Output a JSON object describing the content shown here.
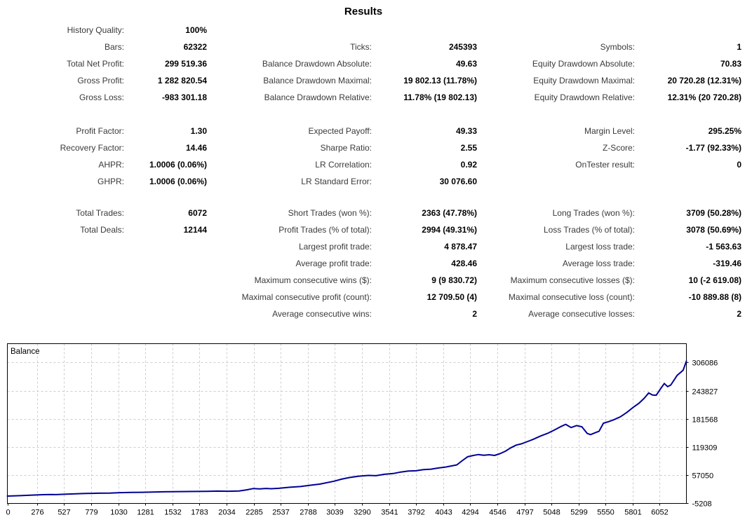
{
  "title": "Results",
  "stats": {
    "rows": [
      {
        "cells": [
          "History Quality:",
          "100%",
          "",
          "",
          "",
          ""
        ]
      },
      {
        "cells": [
          "Bars:",
          "62322",
          "Ticks:",
          "245393",
          "Symbols:",
          "1"
        ]
      },
      {
        "cells": [
          "Total Net Profit:",
          "299 519.36",
          "Balance Drawdown Absolute:",
          "49.63",
          "Equity Drawdown Absolute:",
          "70.83"
        ]
      },
      {
        "cells": [
          "Gross Profit:",
          "1 282 820.54",
          "Balance Drawdown Maximal:",
          "19 802.13 (11.78%)",
          "Equity Drawdown Maximal:",
          "20 720.28 (12.31%)"
        ]
      },
      {
        "cells": [
          "Gross Loss:",
          "-983 301.18",
          "Balance Drawdown Relative:",
          "11.78% (19 802.13)",
          "Equity Drawdown Relative:",
          "12.31% (20 720.28)"
        ]
      },
      {
        "cells": [
          "Profit Factor:",
          "1.30",
          "Expected Payoff:",
          "49.33",
          "Margin Level:",
          "295.25%"
        ]
      },
      {
        "cells": [
          "Recovery Factor:",
          "14.46",
          "Sharpe Ratio:",
          "2.55",
          "Z-Score:",
          "-1.77 (92.33%)"
        ]
      },
      {
        "cells": [
          "AHPR:",
          "1.0006 (0.06%)",
          "LR Correlation:",
          "0.92",
          "OnTester result:",
          "0"
        ]
      },
      {
        "cells": [
          "GHPR:",
          "1.0006 (0.06%)",
          "LR Standard Error:",
          "30 076.60",
          "",
          ""
        ]
      },
      {
        "cells": [
          "Total Trades:",
          "6072",
          "Short Trades (won %):",
          "2363 (47.78%)",
          "Long Trades (won %):",
          "3709 (50.28%)"
        ]
      },
      {
        "cells": [
          "Total Deals:",
          "12144",
          "Profit Trades (% of total):",
          "2994 (49.31%)",
          "Loss Trades (% of total):",
          "3078 (50.69%)"
        ]
      },
      {
        "cells": [
          "",
          "",
          "Largest profit trade:",
          "4 878.47",
          "Largest loss trade:",
          "-1 563.63"
        ]
      },
      {
        "cells": [
          "",
          "",
          "Average profit trade:",
          "428.46",
          "Average loss trade:",
          "-319.46"
        ]
      },
      {
        "cells": [
          "",
          "",
          "Maximum consecutive wins ($):",
          "9 (9 830.72)",
          "Maximum consecutive losses ($):",
          "10 (-2 619.08)"
        ]
      },
      {
        "cells": [
          "",
          "",
          "Maximal consecutive profit (count):",
          "12 709.50 (4)",
          "Maximal consecutive loss (count):",
          "-10 889.88 (8)"
        ]
      },
      {
        "cells": [
          "",
          "",
          "Average consecutive wins:",
          "2",
          "Average consecutive losses:",
          "2"
        ]
      }
    ]
  },
  "chart_data": {
    "type": "line",
    "title": "Balance",
    "legend_label": "Balance",
    "xlabel": "",
    "ylabel": "",
    "grid": true,
    "xlim": [
      0,
      6300
    ],
    "ylim": [
      -6300,
      348048
    ],
    "xticks": [
      0,
      276,
      527,
      779,
      1030,
      1281,
      1532,
      1783,
      2034,
      2285,
      2537,
      2788,
      3039,
      3290,
      3541,
      3792,
      4043,
      4294,
      4546,
      4797,
      5048,
      5299,
      5550,
      5801,
      6052
    ],
    "yticks": [
      306086,
      243827,
      181568,
      119309,
      57050,
      -5208
    ],
    "colors": {
      "line": "#000096",
      "grid": "#cdcdcd",
      "frame": "#000000",
      "tick_text": "#000000"
    },
    "series": [
      {
        "name": "Balance",
        "points": [
          [
            0,
            10000
          ],
          [
            120,
            11000
          ],
          [
            250,
            12400
          ],
          [
            330,
            13200
          ],
          [
            400,
            13600
          ],
          [
            450,
            13300
          ],
          [
            550,
            14300
          ],
          [
            700,
            15600
          ],
          [
            850,
            16400
          ],
          [
            950,
            16700
          ],
          [
            1050,
            17600
          ],
          [
            1150,
            18100
          ],
          [
            1250,
            18400
          ],
          [
            1350,
            19100
          ],
          [
            1450,
            19500
          ],
          [
            1600,
            20000
          ],
          [
            1750,
            20300
          ],
          [
            1850,
            20600
          ],
          [
            1950,
            21000
          ],
          [
            2050,
            20700
          ],
          [
            2150,
            21400
          ],
          [
            2220,
            23800
          ],
          [
            2280,
            26600
          ],
          [
            2340,
            26100
          ],
          [
            2400,
            27000
          ],
          [
            2450,
            26400
          ],
          [
            2520,
            27300
          ],
          [
            2620,
            29600
          ],
          [
            2720,
            31200
          ],
          [
            2800,
            33600
          ],
          [
            2900,
            36600
          ],
          [
            3030,
            43000
          ],
          [
            3100,
            47400
          ],
          [
            3170,
            51000
          ],
          [
            3260,
            54100
          ],
          [
            3350,
            55900
          ],
          [
            3420,
            55300
          ],
          [
            3500,
            58400
          ],
          [
            3580,
            60100
          ],
          [
            3650,
            63400
          ],
          [
            3720,
            65600
          ],
          [
            3790,
            66100
          ],
          [
            3860,
            68600
          ],
          [
            3930,
            69700
          ],
          [
            4000,
            72400
          ],
          [
            4060,
            74100
          ],
          [
            4120,
            76800
          ],
          [
            4170,
            79200
          ],
          [
            4220,
            88500
          ],
          [
            4270,
            97200
          ],
          [
            4320,
            100000
          ],
          [
            4370,
            102200
          ],
          [
            4420,
            100600
          ],
          [
            4470,
            101700
          ],
          [
            4520,
            100200
          ],
          [
            4570,
            104000
          ],
          [
            4620,
            109500
          ],
          [
            4670,
            117000
          ],
          [
            4720,
            123000
          ],
          [
            4770,
            126000
          ],
          [
            4820,
            130500
          ],
          [
            4880,
            136000
          ],
          [
            4950,
            143500
          ],
          [
            5010,
            149000
          ],
          [
            5070,
            156000
          ],
          [
            5130,
            163500
          ],
          [
            5180,
            169200
          ],
          [
            5230,
            162000
          ],
          [
            5280,
            166300
          ],
          [
            5330,
            163800
          ],
          [
            5380,
            149000
          ],
          [
            5410,
            146300
          ],
          [
            5450,
            150200
          ],
          [
            5490,
            154000
          ],
          [
            5530,
            171600
          ],
          [
            5580,
            175200
          ],
          [
            5630,
            179800
          ],
          [
            5690,
            186300
          ],
          [
            5750,
            196000
          ],
          [
            5810,
            207500
          ],
          [
            5860,
            216000
          ],
          [
            5910,
            227500
          ],
          [
            5950,
            238800
          ],
          [
            5985,
            234200
          ],
          [
            6020,
            233600
          ],
          [
            6060,
            248000
          ],
          [
            6095,
            259800
          ],
          [
            6125,
            252800
          ],
          [
            6155,
            256300
          ],
          [
            6185,
            267000
          ],
          [
            6215,
            278000
          ],
          [
            6245,
            284000
          ],
          [
            6270,
            289500
          ],
          [
            6300,
            309519
          ]
        ]
      }
    ]
  }
}
